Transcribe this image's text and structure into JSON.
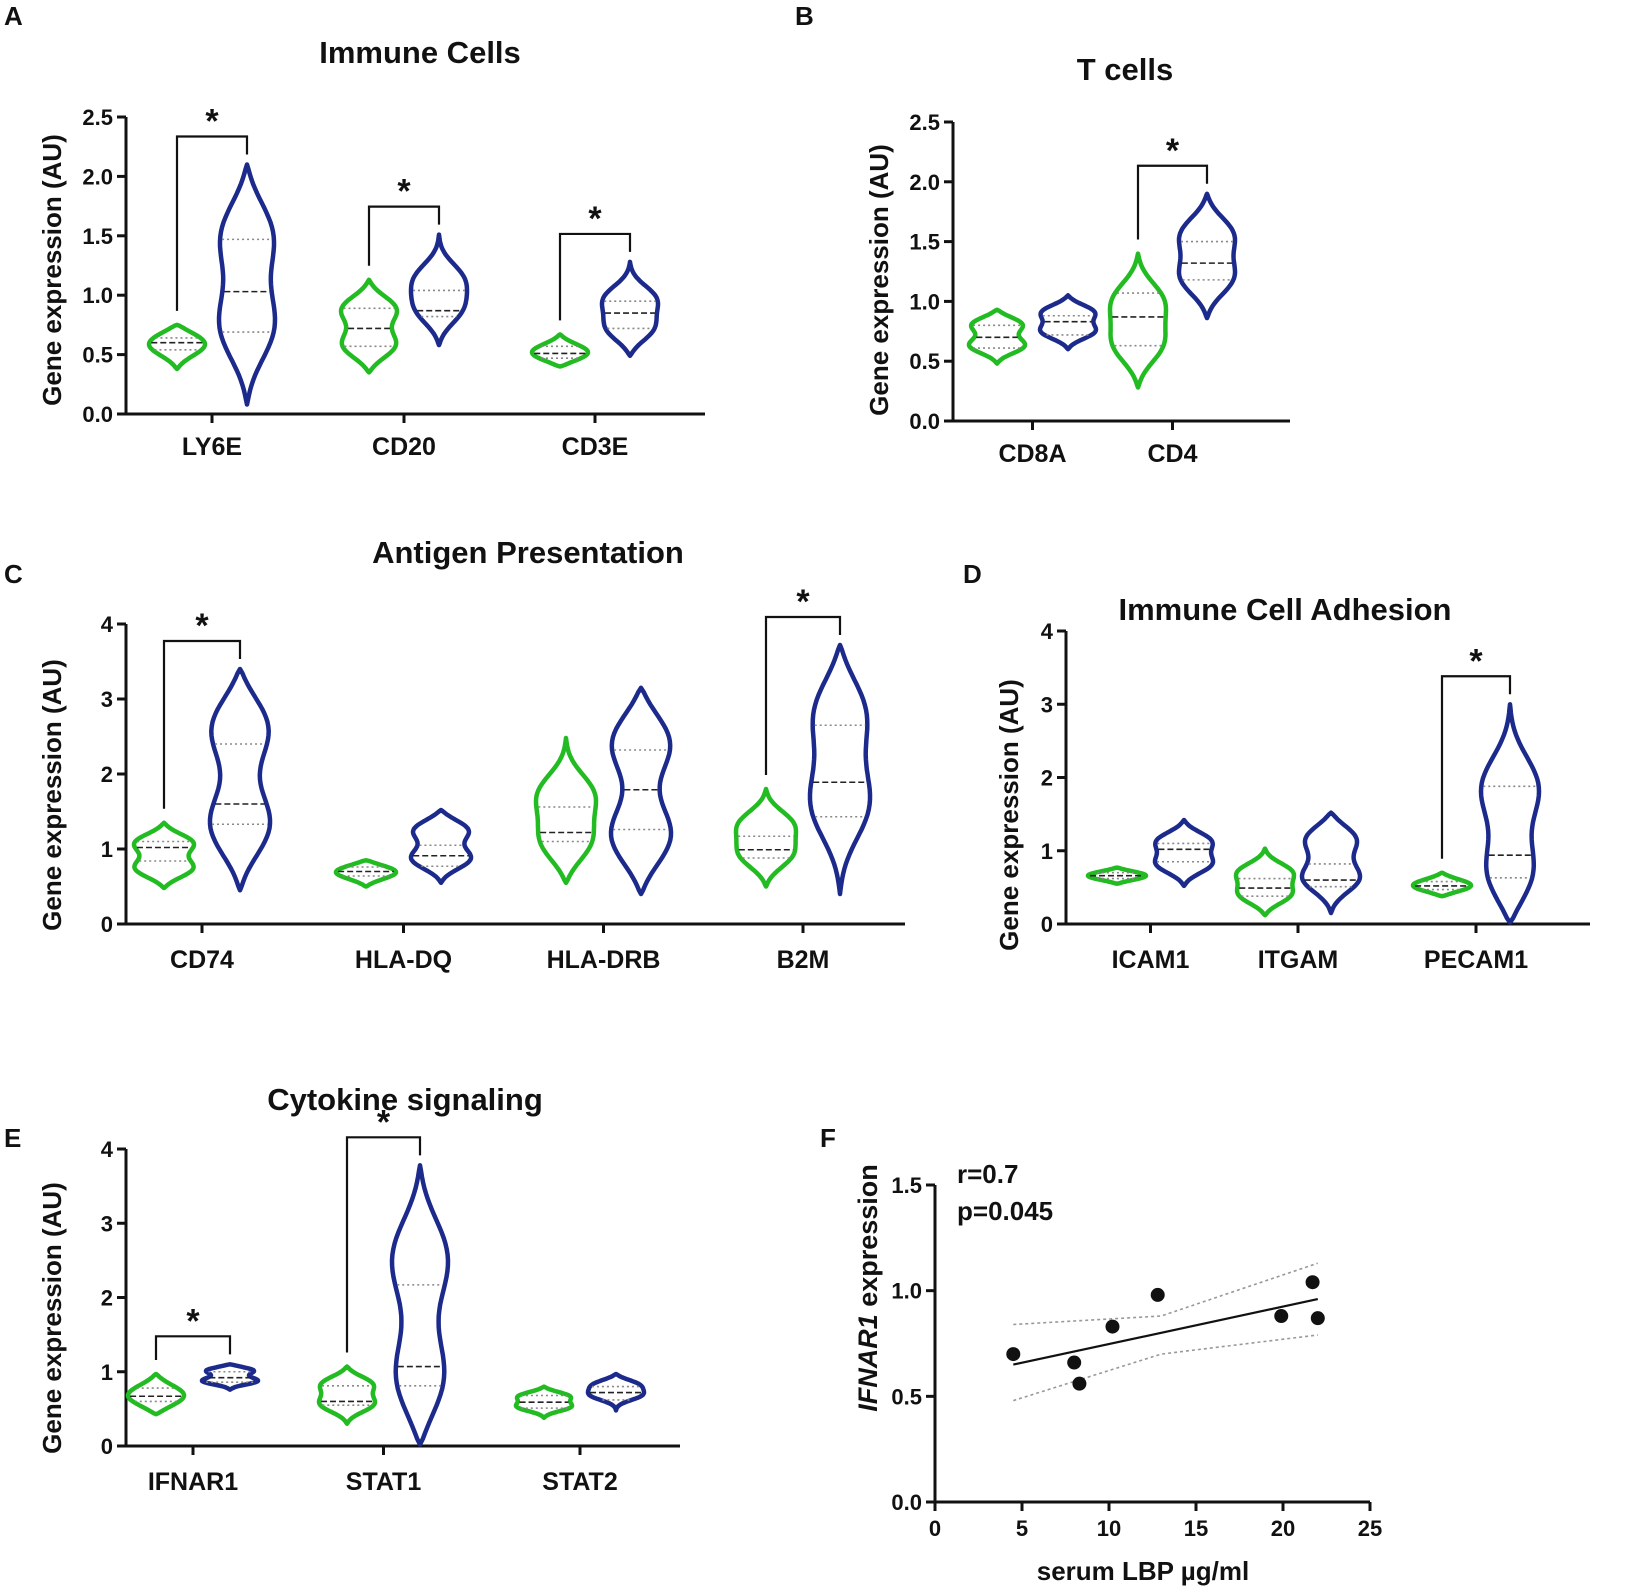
{
  "colors": {
    "group1": "#22bb22",
    "group2": "#1c2a8c",
    "ink": "#111111",
    "ci": "#999999"
  },
  "chart_data": [
    {
      "id": "A",
      "panel_label": "A",
      "type": "violin",
      "title": "Immune Cells",
      "ylabel": "Gene expression (AU)",
      "ylim": [
        0,
        2.5
      ],
      "yticks": [
        "0.0",
        "0.5",
        "1.0",
        "1.5",
        "2.0",
        "2.5"
      ],
      "categories": [
        "LY6E",
        "CD20",
        "CD3E"
      ],
      "series": [
        {
          "name": "group1",
          "violins": [
            {
              "min": 0.38,
              "max": 0.75,
              "q1": 0.54,
              "median": 0.6,
              "q3": 0.64,
              "modes": [
                0.6
              ]
            },
            {
              "min": 0.35,
              "max": 1.13,
              "q1": 0.57,
              "median": 0.72,
              "q3": 0.89,
              "modes": [
                0.56,
                0.9
              ]
            },
            {
              "min": 0.4,
              "max": 0.67,
              "q1": 0.47,
              "median": 0.51,
              "q3": 0.57,
              "modes": [
                0.51
              ]
            }
          ]
        },
        {
          "name": "group2",
          "violins": [
            {
              "min": 0.08,
              "max": 2.1,
              "q1": 0.69,
              "median": 1.03,
              "q3": 1.47,
              "modes": [
                0.7,
                1.55
              ]
            },
            {
              "min": 0.58,
              "max": 1.51,
              "q1": 0.82,
              "median": 0.87,
              "q3": 1.04,
              "modes": [
                0.86,
                1.15
              ]
            },
            {
              "min": 0.49,
              "max": 1.28,
              "q1": 0.72,
              "median": 0.85,
              "q3": 0.95,
              "modes": [
                0.7,
                0.98
              ]
            }
          ]
        }
      ],
      "significance": [
        {
          "category": "LY6E",
          "label": "*"
        },
        {
          "category": "CD20",
          "label": "*"
        },
        {
          "category": "CD3E",
          "label": "*"
        }
      ]
    },
    {
      "id": "B",
      "panel_label": "B",
      "type": "violin",
      "title": "T cells",
      "ylabel": "Gene expression (AU)",
      "ylim": [
        0,
        2.5
      ],
      "yticks": [
        "0.0",
        "0.5",
        "1.0",
        "1.5",
        "2.0",
        "2.5"
      ],
      "categories": [
        "CD8A",
        "CD4"
      ],
      "series": [
        {
          "name": "group1",
          "violins": [
            {
              "min": 0.48,
              "max": 0.93,
              "q1": 0.61,
              "median": 0.7,
              "q3": 0.8,
              "modes": [
                0.62,
                0.82
              ]
            },
            {
              "min": 0.28,
              "max": 1.4,
              "q1": 0.63,
              "median": 0.87,
              "q3": 1.07,
              "modes": [
                0.62,
                1.02
              ]
            }
          ]
        },
        {
          "name": "group2",
          "violins": [
            {
              "min": 0.6,
              "max": 1.05,
              "q1": 0.72,
              "median": 0.83,
              "q3": 0.88,
              "modes": [
                0.74,
                0.92
              ]
            },
            {
              "min": 0.86,
              "max": 1.9,
              "q1": 1.18,
              "median": 1.32,
              "q3": 1.5,
              "modes": [
                1.18,
                1.58
              ]
            }
          ]
        }
      ],
      "significance": [
        {
          "category": "CD4",
          "label": "*"
        }
      ]
    },
    {
      "id": "C",
      "panel_label": "C",
      "type": "violin",
      "title": "Antigen Presentation",
      "ylabel": "Gene expression (AU)",
      "ylim": [
        0,
        4
      ],
      "yticks": [
        "0",
        "1",
        "2",
        "3",
        "4"
      ],
      "categories": [
        "CD74",
        "HLA-DQ",
        "HLA-DRB",
        "B2M"
      ],
      "series": [
        {
          "name": "group1",
          "violins": [
            {
              "min": 0.48,
              "max": 1.35,
              "q1": 0.84,
              "median": 1.02,
              "q3": 1.1,
              "modes": [
                0.72,
                1.1
              ]
            },
            {
              "min": 0.5,
              "max": 0.85,
              "q1": 0.64,
              "median": 0.7,
              "q3": 0.76,
              "modes": [
                0.7
              ]
            },
            {
              "min": 0.55,
              "max": 2.48,
              "q1": 1.1,
              "median": 1.22,
              "q3": 1.56,
              "modes": [
                1.05,
                1.75
              ]
            },
            {
              "min": 0.5,
              "max": 1.8,
              "q1": 0.88,
              "median": 0.99,
              "q3": 1.17,
              "modes": [
                0.9,
                1.35
              ]
            }
          ]
        },
        {
          "name": "group2",
          "violins": [
            {
              "min": 0.45,
              "max": 3.4,
              "q1": 1.33,
              "median": 1.6,
              "q3": 2.4,
              "modes": [
                1.25,
                2.7
              ]
            },
            {
              "min": 0.55,
              "max": 1.52,
              "q1": 0.77,
              "median": 0.91,
              "q3": 1.05,
              "modes": [
                0.85,
                1.28
              ]
            },
            {
              "min": 0.4,
              "max": 3.15,
              "q1": 1.26,
              "median": 1.79,
              "q3": 2.32,
              "modes": [
                1.1,
                2.5
              ]
            },
            {
              "min": 0.4,
              "max": 3.72,
              "q1": 1.43,
              "median": 1.89,
              "q3": 2.65,
              "modes": [
                1.55,
                2.9
              ]
            }
          ]
        }
      ],
      "significance": [
        {
          "category": "CD74",
          "label": "*"
        },
        {
          "category": "B2M",
          "label": "*"
        }
      ]
    },
    {
      "id": "D",
      "panel_label": "D",
      "type": "violin",
      "title": "Immune Cell Adhesion",
      "ylabel": "Gene expression (AU)",
      "ylim": [
        0,
        4
      ],
      "yticks": [
        "0",
        "1",
        "2",
        "3",
        "4"
      ],
      "categories": [
        "ICAM1",
        "ITGAM",
        "PECAM1"
      ],
      "series": [
        {
          "name": "group1",
          "violins": [
            {
              "min": 0.55,
              "max": 0.77,
              "q1": 0.62,
              "median": 0.66,
              "q3": 0.7,
              "modes": [
                0.66
              ]
            },
            {
              "min": 0.12,
              "max": 1.03,
              "q1": 0.38,
              "median": 0.49,
              "q3": 0.62,
              "modes": [
                0.38,
                0.72
              ]
            },
            {
              "min": 0.38,
              "max": 0.7,
              "q1": 0.47,
              "median": 0.52,
              "q3": 0.58,
              "modes": [
                0.52
              ]
            }
          ]
        },
        {
          "name": "group2",
          "violins": [
            {
              "min": 0.52,
              "max": 1.42,
              "q1": 0.85,
              "median": 1.02,
              "q3": 1.1,
              "modes": [
                0.8,
                1.15
              ]
            },
            {
              "min": 0.15,
              "max": 1.52,
              "q1": 0.51,
              "median": 0.6,
              "q3": 0.82,
              "modes": [
                0.6,
                1.2
              ]
            },
            {
              "min": 0.02,
              "max": 3.0,
              "q1": 0.63,
              "median": 0.94,
              "q3": 1.88,
              "modes": [
                0.6,
                1.9
              ]
            }
          ]
        }
      ],
      "significance": [
        {
          "category": "PECAM1",
          "label": "*"
        }
      ]
    },
    {
      "id": "E",
      "panel_label": "E",
      "type": "violin",
      "title": "Cytokine signaling",
      "ylabel": "Gene expression (AU)",
      "ylim": [
        0,
        4
      ],
      "yticks": [
        "0",
        "1",
        "2",
        "3",
        "4"
      ],
      "categories": [
        "IFNAR1",
        "STAT1",
        "STAT2"
      ],
      "series": [
        {
          "name": "group1",
          "violins": [
            {
              "min": 0.43,
              "max": 0.97,
              "q1": 0.6,
              "median": 0.67,
              "q3": 0.78,
              "modes": [
                0.67
              ]
            },
            {
              "min": 0.3,
              "max": 1.07,
              "q1": 0.55,
              "median": 0.6,
              "q3": 0.81,
              "modes": [
                0.55,
                0.85
              ]
            },
            {
              "min": 0.38,
              "max": 0.8,
              "q1": 0.51,
              "median": 0.59,
              "q3": 0.68,
              "modes": [
                0.52,
                0.68
              ]
            }
          ]
        },
        {
          "name": "group2",
          "violins": [
            {
              "min": 0.76,
              "max": 1.1,
              "q1": 0.86,
              "median": 0.92,
              "q3": 1.0,
              "modes": [
                0.87,
                1.03
              ]
            },
            {
              "min": 0.02,
              "max": 3.78,
              "q1": 0.81,
              "median": 1.07,
              "q3": 2.17,
              "modes": [
                0.8,
                2.6
              ]
            },
            {
              "min": 0.48,
              "max": 0.97,
              "q1": 0.62,
              "median": 0.72,
              "q3": 0.8,
              "modes": [
                0.68,
                0.84
              ]
            }
          ]
        }
      ],
      "significance": [
        {
          "category": "IFNAR1",
          "label": "*"
        },
        {
          "category": "STAT1",
          "label": "*"
        }
      ]
    },
    {
      "id": "F",
      "panel_label": "F",
      "type": "scatter",
      "title": "",
      "xlabel": "serum LBP µg/ml",
      "ylabel": "IFNAR1 expression",
      "ylabel_italic_part": "IFNAR1",
      "ylabel_rest": " expression",
      "xlim": [
        0,
        25
      ],
      "ylim": [
        0,
        1.5
      ],
      "xticks": [
        "0",
        "5",
        "10",
        "15",
        "20",
        "25"
      ],
      "yticks": [
        "0.0",
        "0.5",
        "1.0",
        "1.5"
      ],
      "points": [
        {
          "x": 4.5,
          "y": 0.7
        },
        {
          "x": 8.0,
          "y": 0.66
        },
        {
          "x": 8.3,
          "y": 0.56
        },
        {
          "x": 10.2,
          "y": 0.83
        },
        {
          "x": 12.8,
          "y": 0.98
        },
        {
          "x": 19.9,
          "y": 0.88
        },
        {
          "x": 21.7,
          "y": 1.04
        },
        {
          "x": 22.0,
          "y": 0.87
        }
      ],
      "fit": {
        "x": [
          4.5,
          22.0
        ],
        "y": [
          0.65,
          0.96
        ]
      },
      "ci_upper": {
        "x": [
          4.5,
          13.0,
          22.0
        ],
        "y": [
          0.84,
          0.88,
          1.13
        ]
      },
      "ci_lower": {
        "x": [
          4.5,
          13.0,
          22.0
        ],
        "y": [
          0.48,
          0.7,
          0.79
        ]
      },
      "annotations": [
        "r=0.7",
        "p=0.045"
      ]
    }
  ]
}
